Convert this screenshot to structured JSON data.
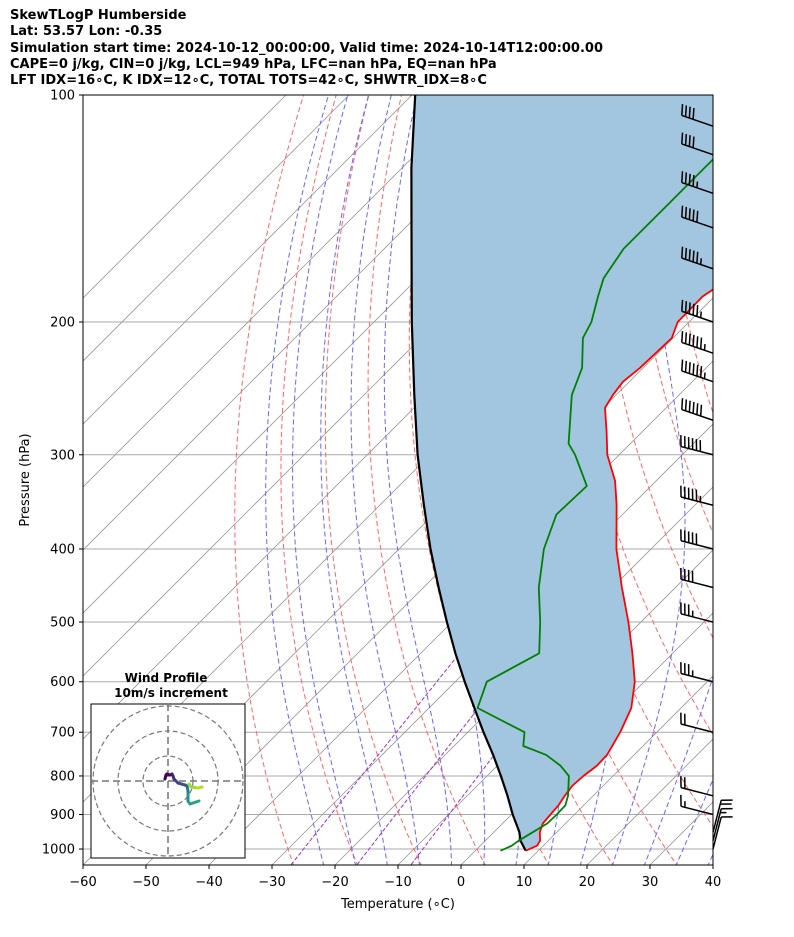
{
  "header": {
    "line1": "SkewTLogP Humberside",
    "line2": "Lat: 53.57   Lon: -0.35",
    "line3": "Simulation start time: 2024-10-12_00:00:00, Valid time: 2024-10-14T12:00:00.00",
    "line4": "CAPE=0 j/kg, CIN=0 j/kg, LCL=949 hPa, LFC=nan hPa, EQ=nan hPa",
    "line5": "LFT IDX=16∘C, K IDX=12∘C, TOTAL TOTS=42∘C, SHWTR_IDX=8∘C"
  },
  "colors": {
    "temperature": "#ff0000",
    "dewpoint": "#008000",
    "parcel": "#000000",
    "shade": "#a3c6e0",
    "dry_adiabat": "#ff6666",
    "moist_adiabat": "#6666ff",
    "mixing_ratio": "#9b30c8",
    "isotherm": "#999999",
    "isobar": "#aaaaaa"
  },
  "chart_data": {
    "type": "skewt",
    "xlabel": "Temperature (∘C)",
    "ylabel": "Pressure (hPa)",
    "xlim": [
      -60,
      40
    ],
    "ylim": [
      1050,
      100
    ],
    "x_ticks": [
      -60,
      -50,
      -40,
      -30,
      -20,
      -10,
      0,
      10,
      20,
      30,
      40
    ],
    "x_tick_labels": [
      "−60",
      "−50",
      "−40",
      "−30",
      "−20",
      "−10",
      "0",
      "10",
      "20",
      "30",
      "40"
    ],
    "y_ticks": [
      1000,
      900,
      800,
      700,
      600,
      500,
      400,
      300,
      200,
      100
    ],
    "y_tick_labels": [
      "1000",
      "900",
      "800",
      "700",
      "600",
      "500",
      "400",
      "300",
      "200",
      "100"
    ],
    "series": [
      {
        "name": "Temperature",
        "pressure": [
          1005,
          990,
          975,
          950,
          925,
          900,
          875,
          850,
          825,
          800,
          775,
          750,
          700,
          650,
          600,
          550,
          500,
          450,
          400,
          350,
          325,
          300,
          280,
          260,
          250,
          240,
          230,
          210,
          200,
          185,
          175,
          165,
          160,
          150,
          140,
          130,
          120,
          110,
          100
        ],
        "temp": [
          8.0,
          9.0,
          8.7,
          7.3,
          6.4,
          6.2,
          6.0,
          5.5,
          5.1,
          5.3,
          5.8,
          5.7,
          4.2,
          2.1,
          -1.5,
          -6.4,
          -12.0,
          -18.5,
          -25.5,
          -32.4,
          -36.5,
          -41.9,
          -45.6,
          -49.7,
          -50.5,
          -51.0,
          -50.5,
          -50.2,
          -51.8,
          -51.9,
          -50.5,
          -48.0,
          -47.0,
          -45.5,
          -45.3,
          -44.0,
          -43.5,
          -43.5,
          -43.5
        ]
      },
      {
        "name": "Dewpoint",
        "pressure": [
          1005,
          990,
          975,
          950,
          925,
          900,
          875,
          850,
          800,
          775,
          750,
          730,
          700,
          650,
          600,
          550,
          500,
          450,
          400,
          360,
          330,
          300,
          290,
          250,
          230,
          210,
          200,
          185,
          175,
          160,
          140,
          120,
          100
        ],
        "temp": [
          4.0,
          5.0,
          5.3,
          6.2,
          7.1,
          7.2,
          7.1,
          6.0,
          3.0,
          0.0,
          -4.0,
          -9.0,
          -11.0,
          -22.3,
          -25.0,
          -21.2,
          -26.0,
          -31.7,
          -37.0,
          -40.5,
          -40.2,
          -47.0,
          -49.8,
          -57.0,
          -59.7,
          -64.3,
          -65.5,
          -68.5,
          -70.5,
          -72.0,
          -72.0,
          -72.0,
          -72.0
        ]
      },
      {
        "name": "Parcel",
        "pressure": [
          1005,
          975,
          949,
          900,
          850,
          800,
          750,
          700,
          650,
          600,
          550,
          500,
          450,
          400,
          350,
          300,
          250,
          200,
          150,
          125,
          100
        ],
        "temp": [
          8.0,
          5.6,
          4.0,
          0.2,
          -3.6,
          -7.8,
          -12.4,
          -17.5,
          -22.8,
          -28.5,
          -34.5,
          -40.8,
          -47.6,
          -55.0,
          -63.0,
          -72.0,
          -82.0,
          -94.0,
          -109.0,
          -118.5,
          -129.5
        ]
      }
    ],
    "wind_barbs": [
      {
        "p": 1000,
        "speed_kt": 10
      },
      {
        "p": 975,
        "speed_kt": 15
      },
      {
        "p": 950,
        "speed_kt": 20
      },
      {
        "p": 900,
        "speed_kt": 15
      },
      {
        "p": 850,
        "speed_kt": 20
      },
      {
        "p": 700,
        "speed_kt": 20
      },
      {
        "p": 600,
        "speed_kt": 35
      },
      {
        "p": 500,
        "speed_kt": 35
      },
      {
        "p": 450,
        "speed_kt": 40
      },
      {
        "p": 400,
        "speed_kt": 50
      },
      {
        "p": 350,
        "speed_kt": 55
      },
      {
        "p": 300,
        "speed_kt": 60
      },
      {
        "p": 270,
        "speed_kt": 60
      },
      {
        "p": 240,
        "speed_kt": 65
      },
      {
        "p": 220,
        "speed_kt": 65
      },
      {
        "p": 200,
        "speed_kt": 55
      },
      {
        "p": 170,
        "speed_kt": 55
      },
      {
        "p": 150,
        "speed_kt": 50
      },
      {
        "p": 135,
        "speed_kt": 45
      },
      {
        "p": 120,
        "speed_kt": 40
      },
      {
        "p": 110,
        "speed_kt": 40
      }
    ],
    "hodograph": {
      "title": "Wind Profile",
      "subtitle": "10m/s increment",
      "rings_ms": [
        10,
        20,
        30
      ],
      "trace": [
        {
          "u": 31,
          "v": -20,
          "color": "#26a388"
        },
        {
          "u": 22,
          "v": -23,
          "color": "#26a388"
        },
        {
          "u": 20,
          "v": -20,
          "color": "#21918c"
        },
        {
          "u": 20,
          "v": -10,
          "color": "#2a788e"
        },
        {
          "u": 19,
          "v": -5,
          "color": "#33638d"
        },
        {
          "u": 17,
          "v": -4,
          "color": "#3b528b"
        },
        {
          "u": 10,
          "v": -2,
          "color": "#433e85"
        },
        {
          "u": 6,
          "v": 2,
          "color": "#472d7b"
        },
        {
          "u": 5,
          "v": 5,
          "color": "#482475"
        },
        {
          "u": 4,
          "v": 7,
          "color": "#481d6f"
        },
        {
          "u": 2,
          "v": 6,
          "color": "#46085c"
        },
        {
          "u": -1,
          "v": 7,
          "color": "#440154"
        },
        {
          "u": -2,
          "v": 6,
          "color": "#440154"
        },
        {
          "u": -3,
          "v": 2,
          "color": "#440154"
        }
      ],
      "trace2": [
        {
          "u": 21,
          "v": -3,
          "color": "#a0da39"
        },
        {
          "u": 23,
          "v": -6,
          "color": "#a0da39"
        },
        {
          "u": 30,
          "v": -7,
          "color": "#b5de2b"
        },
        {
          "u": 34,
          "v": -6,
          "color": "#fde725"
        }
      ]
    }
  }
}
